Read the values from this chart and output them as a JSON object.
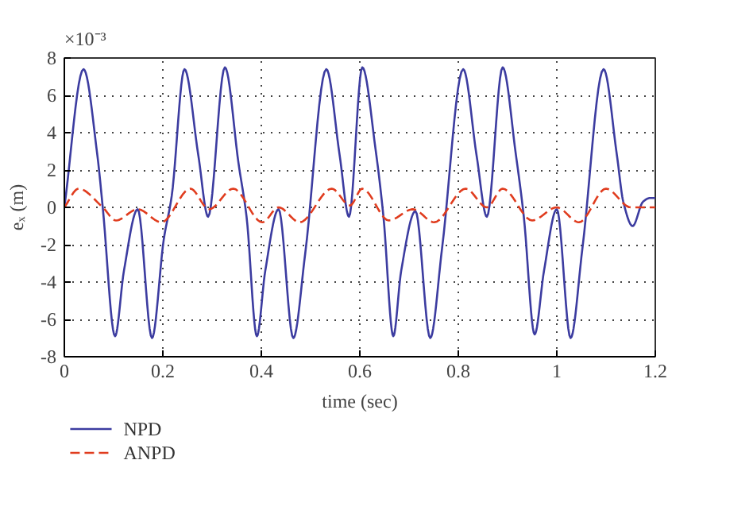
{
  "chart_data": {
    "type": "line",
    "xlabel": "time (sec)",
    "ylabel": "eₓ (m)",
    "annotations": [
      "×10⁻³"
    ],
    "xlim": [
      0,
      1.2
    ],
    "xticks": [
      0,
      0.2,
      0.4,
      0.6,
      0.8,
      1,
      1.2
    ],
    "ylim": [
      -8,
      8
    ],
    "yticks": [
      -8,
      -6,
      -4,
      -2,
      0,
      2,
      4,
      6,
      8
    ],
    "grid": true,
    "legend": "bottom",
    "line_style": "solid",
    "series": [
      {
        "name": "NPD",
        "color": "#3c3ca0",
        "x": [
          0,
          0.039,
          0.067,
          0.078,
          0.103,
          0.121,
          0.149,
          0.178,
          0.202,
          0.218,
          0.244,
          0.272,
          0.292,
          0.326,
          0.354,
          0.37,
          0.391,
          0.408,
          0.435,
          0.465,
          0.489,
          0.532,
          0.559,
          0.578,
          0.605,
          0.632,
          0.648,
          0.668,
          0.684,
          0.713,
          0.743,
          0.767,
          0.81,
          0.837,
          0.858,
          0.89,
          0.917,
          0.933,
          0.955,
          0.974,
          1.0,
          1.028,
          1.052,
          1.095,
          1.122,
          1.135,
          1.154,
          1.175,
          1.189,
          1.2
        ],
        "values": [
          0,
          7.4,
          2.8,
          0,
          -6.9,
          -3.4,
          -0.1,
          -7.0,
          -1.7,
          0.6,
          7.4,
          2.8,
          -0.5,
          7.5,
          2.3,
          -0.5,
          -6.9,
          -3.4,
          -0.1,
          -7.0,
          -2.5,
          7.4,
          2.8,
          -0.5,
          7.5,
          3.1,
          -0.5,
          -6.9,
          -3.4,
          -0.2,
          -7.0,
          -2.2,
          7.4,
          2.8,
          -0.5,
          7.5,
          2.8,
          -0.5,
          -6.8,
          -3.4,
          -0.1,
          -7.0,
          -2.2,
          7.4,
          2.8,
          0.3,
          -1.0,
          0.3,
          0.5,
          0.5
        ]
      },
      {
        "name": "ANPD",
        "color": "#e03c1e",
        "line_style": "dashed",
        "x": [
          0,
          0.029,
          0.078,
          0.105,
          0.149,
          0.197,
          0.256,
          0.294,
          0.343,
          0.402,
          0.435,
          0.478,
          0.543,
          0.58,
          0.605,
          0.659,
          0.708,
          0.751,
          0.815,
          0.858,
          0.89,
          0.95,
          1.0,
          1.045,
          1.1,
          1.15,
          1.2
        ],
        "values": [
          0,
          1.0,
          0,
          -0.7,
          -0.1,
          -0.8,
          1.0,
          -0.1,
          1.0,
          -0.8,
          0,
          -0.8,
          1.0,
          0.1,
          1.0,
          -0.7,
          -0.1,
          -0.8,
          1.0,
          0,
          1.0,
          -0.7,
          0,
          -0.8,
          1.0,
          0,
          0
        ]
      }
    ]
  }
}
